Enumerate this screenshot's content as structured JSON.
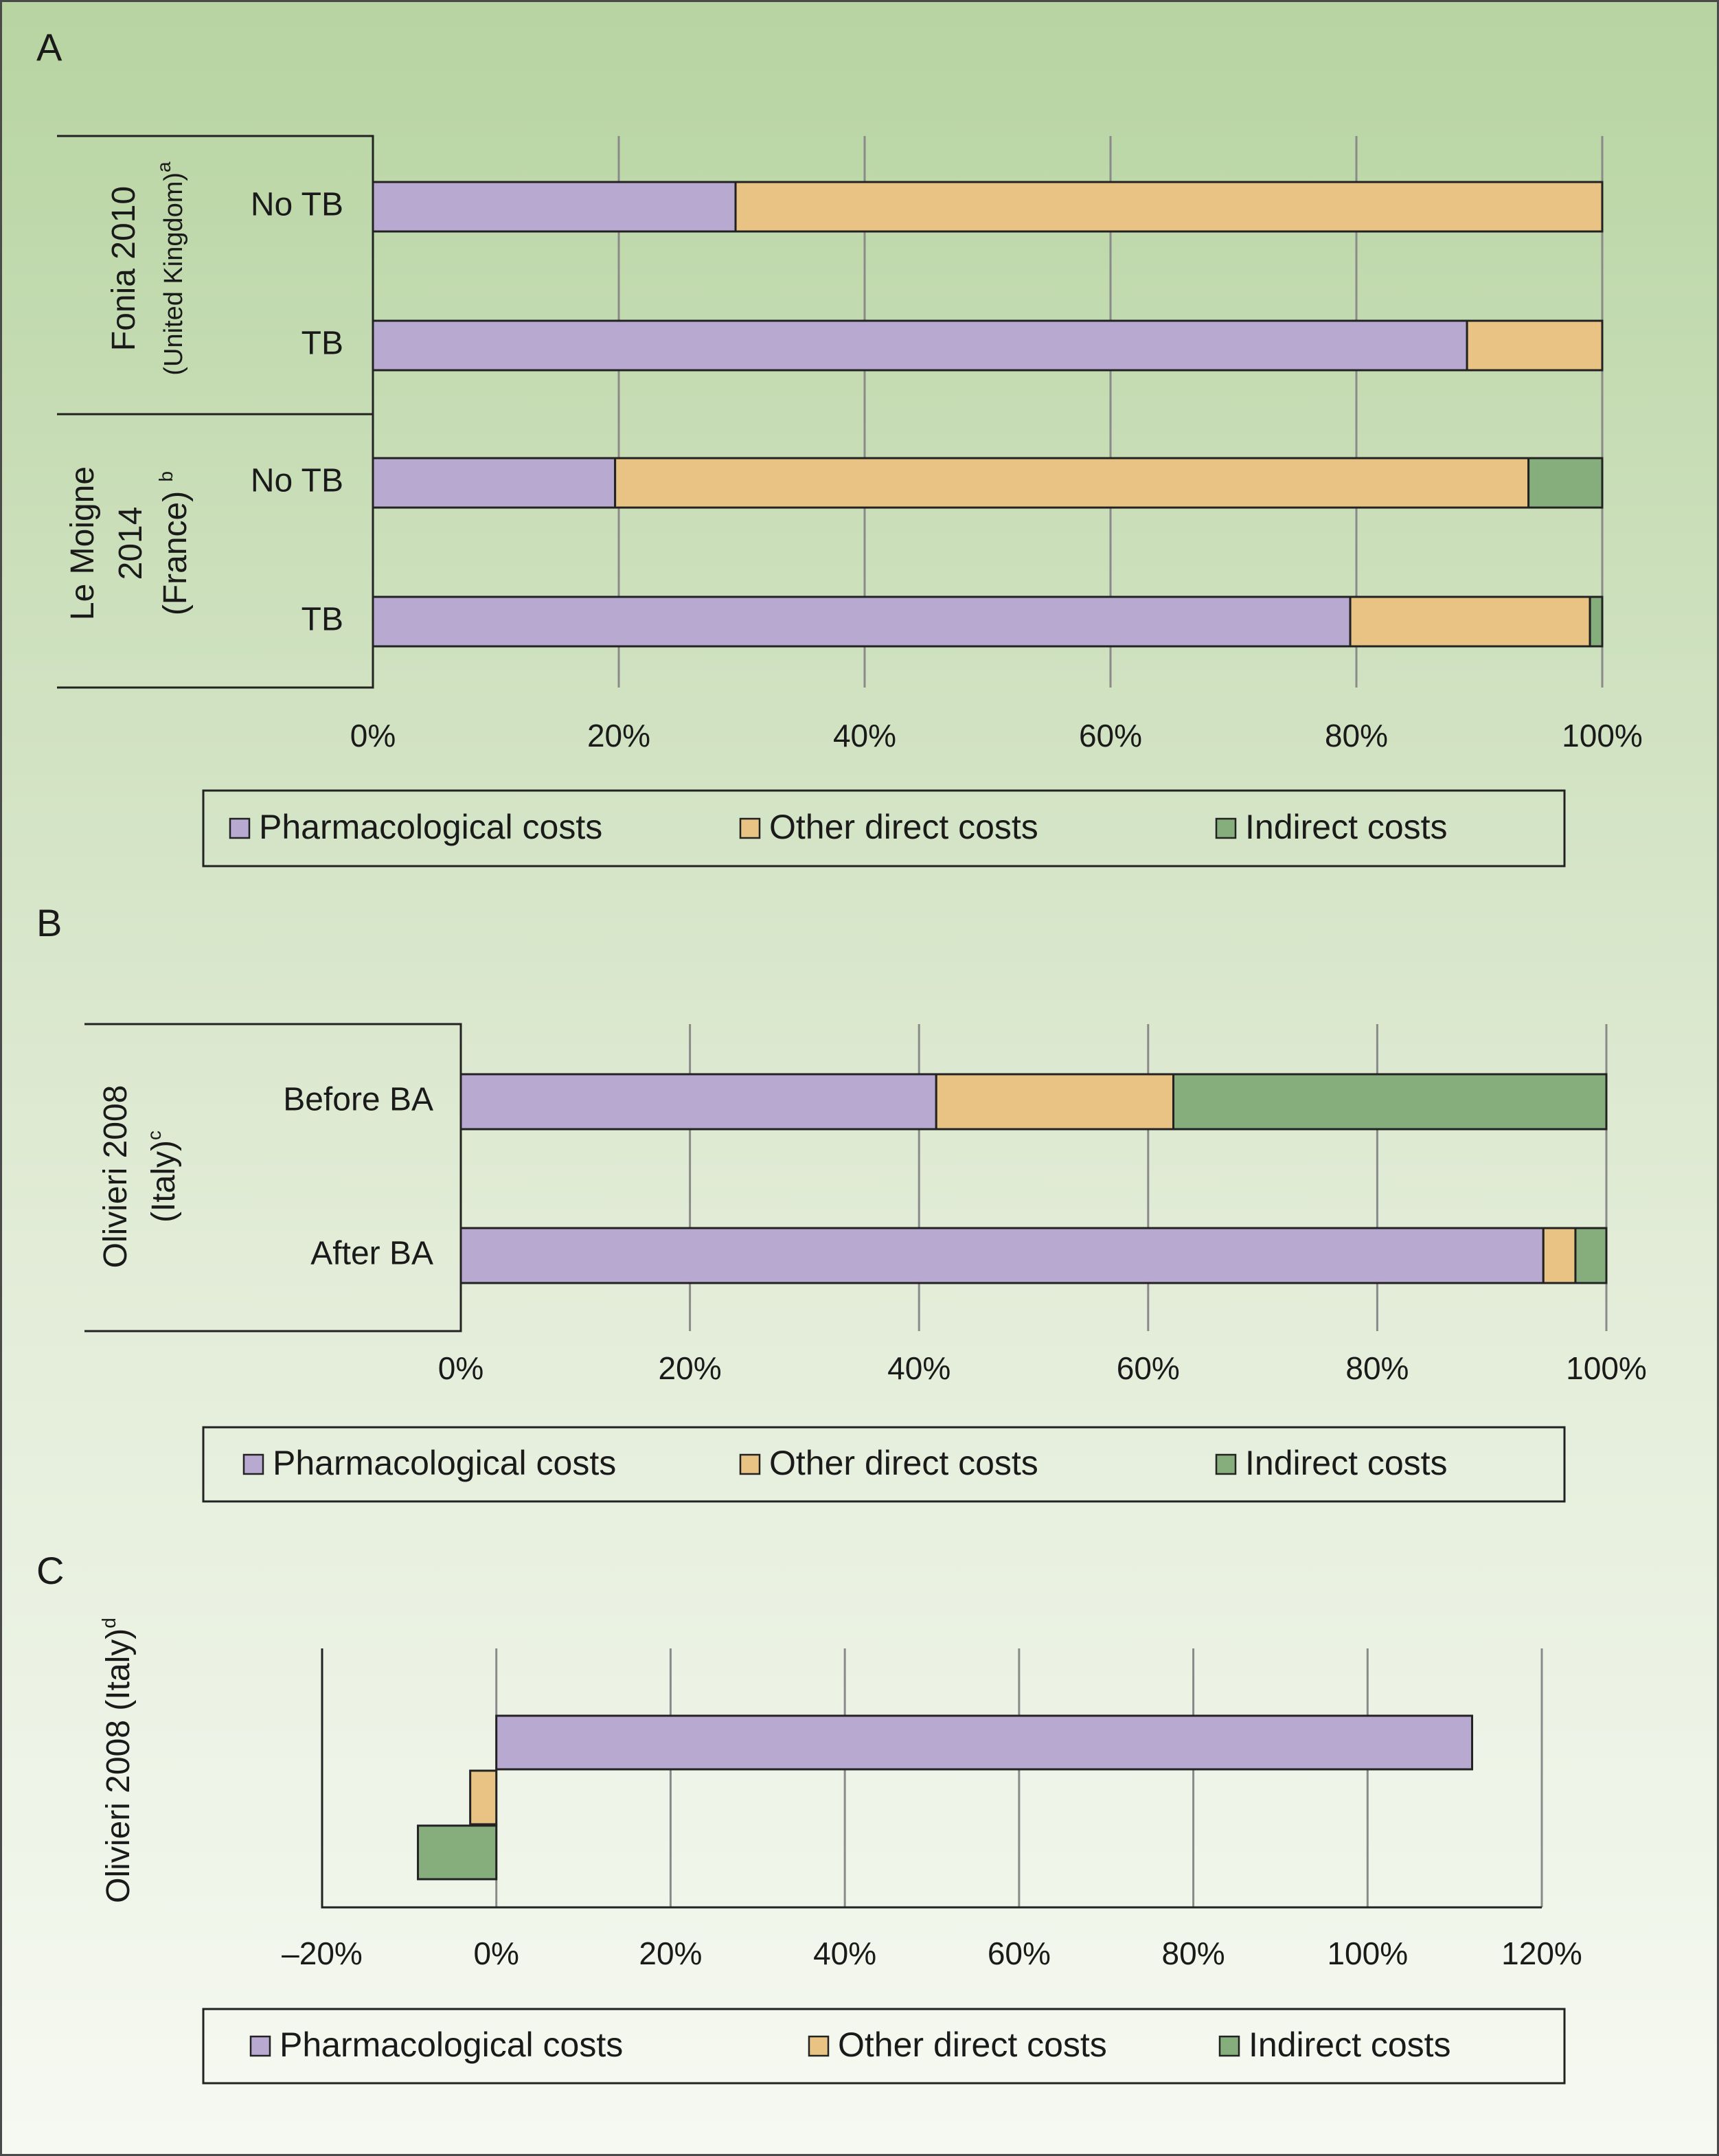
{
  "colors": {
    "Pharmacological costs": "#b8a9d1",
    "Other direct costs": "#e8c384",
    "Indirect costs": "#86ad7c"
  },
  "chart_data": [
    {
      "panel": "A",
      "type": "bar",
      "orientation": "horizontal",
      "stacked": true,
      "xlim": [
        0,
        100
      ],
      "tick_labels": [
        "0%",
        "20%",
        "40%",
        "60%",
        "80%",
        "100%"
      ],
      "groups": [
        {
          "name": "Fonia 2010",
          "subtitle": "(United Kingdom)",
          "sup": "a"
        },
        {
          "name": "Le Moigne",
          "lines": [
            "Le Moigne",
            "2014",
            "(France)"
          ],
          "sup": "b"
        }
      ],
      "categories": [
        "No TB",
        "TB",
        "No TB",
        "TB"
      ],
      "series": [
        {
          "name": "Pharmacological costs",
          "values": [
            29.5,
            89,
            19.7,
            79.5
          ]
        },
        {
          "name": "Other direct costs",
          "values": [
            70.5,
            11,
            74.3,
            19.5
          ]
        },
        {
          "name": "Indirect costs",
          "values": [
            0,
            0,
            6,
            1
          ]
        }
      ],
      "legend": [
        "Pharmacological costs",
        "Other direct costs",
        "Indirect costs"
      ],
      "legend_position": "bottom",
      "grid": true
    },
    {
      "panel": "B",
      "type": "bar",
      "orientation": "horizontal",
      "stacked": true,
      "xlim": [
        0,
        100
      ],
      "tick_labels": [
        "0%",
        "20%",
        "40%",
        "60%",
        "80%",
        "100%"
      ],
      "groups": [
        {
          "name": "Olivieri 2008",
          "subtitle": "(Italy)",
          "sup": "c"
        }
      ],
      "categories": [
        "Before BA",
        "After BA"
      ],
      "series": [
        {
          "name": "Pharmacological costs",
          "values": [
            41.5,
            94.5
          ]
        },
        {
          "name": "Other direct costs",
          "values": [
            20.7,
            2.8
          ]
        },
        {
          "name": "Indirect costs",
          "values": [
            37.8,
            2.7
          ]
        }
      ],
      "legend": [
        "Pharmacological costs",
        "Other direct costs",
        "Indirect costs"
      ],
      "legend_position": "bottom",
      "grid": true
    },
    {
      "panel": "C",
      "type": "bar",
      "orientation": "horizontal",
      "stacked": false,
      "xlim": [
        -20,
        120
      ],
      "tick_labels": [
        "–20%",
        "0%",
        "20%",
        "40%",
        "60%",
        "80%",
        "100%",
        "120%"
      ],
      "ylabel": "Olivieri 2008 (Italy)",
      "ylabel_sup": "d",
      "series": [
        {
          "name": "Pharmacological costs",
          "values": [
            112
          ]
        },
        {
          "name": "Other direct costs",
          "values": [
            -3
          ]
        },
        {
          "name": "Indirect costs",
          "values": [
            -9
          ]
        }
      ],
      "legend": [
        "Pharmacological costs",
        "Other direct costs",
        "Indirect costs"
      ],
      "legend_position": "bottom",
      "grid": true
    }
  ]
}
